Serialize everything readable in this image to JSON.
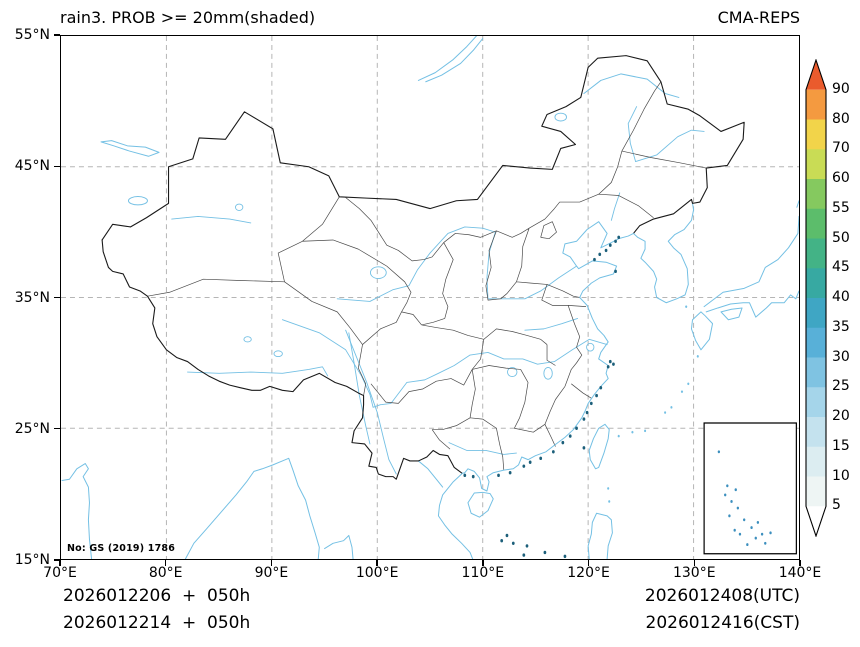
{
  "header": {
    "title": "rain3. PROB >= 20mm(shaded)",
    "model": "CMA-REPS"
  },
  "map": {
    "watermark": "No: GS (2019) 1786"
  },
  "axes": {
    "lat_ticks": [
      "55°N",
      "45°N",
      "35°N",
      "25°N",
      "15°N"
    ],
    "lon_ticks": [
      "70°E",
      "80°E",
      "90°E",
      "100°E",
      "110°E",
      "120°E",
      "130°E",
      "140°E"
    ]
  },
  "colorbar": {
    "labels_top_to_bottom": [
      "90",
      "80",
      "70",
      "60",
      "55",
      "50",
      "45",
      "40",
      "35",
      "30",
      "25",
      "20",
      "15",
      "10",
      "5"
    ],
    "colors_bottom_to_top": [
      "#ffffff",
      "#eef5f4",
      "#dcedf1",
      "#c4e2ee",
      "#a5d5ea",
      "#7fc3e2",
      "#58b0d8",
      "#3fa6c4",
      "#37a9a2",
      "#43b386",
      "#5cbd6b",
      "#85c95f",
      "#c9dc55",
      "#f2d44a",
      "#f49a40",
      "#ea5b2d"
    ],
    "accent_colors": {
      "coastline": "#74c0e4",
      "border": "#2b2b2b",
      "grid": "#b5b5b5",
      "speck": "#1c5f7a"
    }
  },
  "footer": {
    "left_line1": "2026012206  +  050h",
    "left_line2": "2026012214  +  050h",
    "right_line1": "2026012408(UTC)",
    "right_line2": "2026012416(CST)"
  }
}
